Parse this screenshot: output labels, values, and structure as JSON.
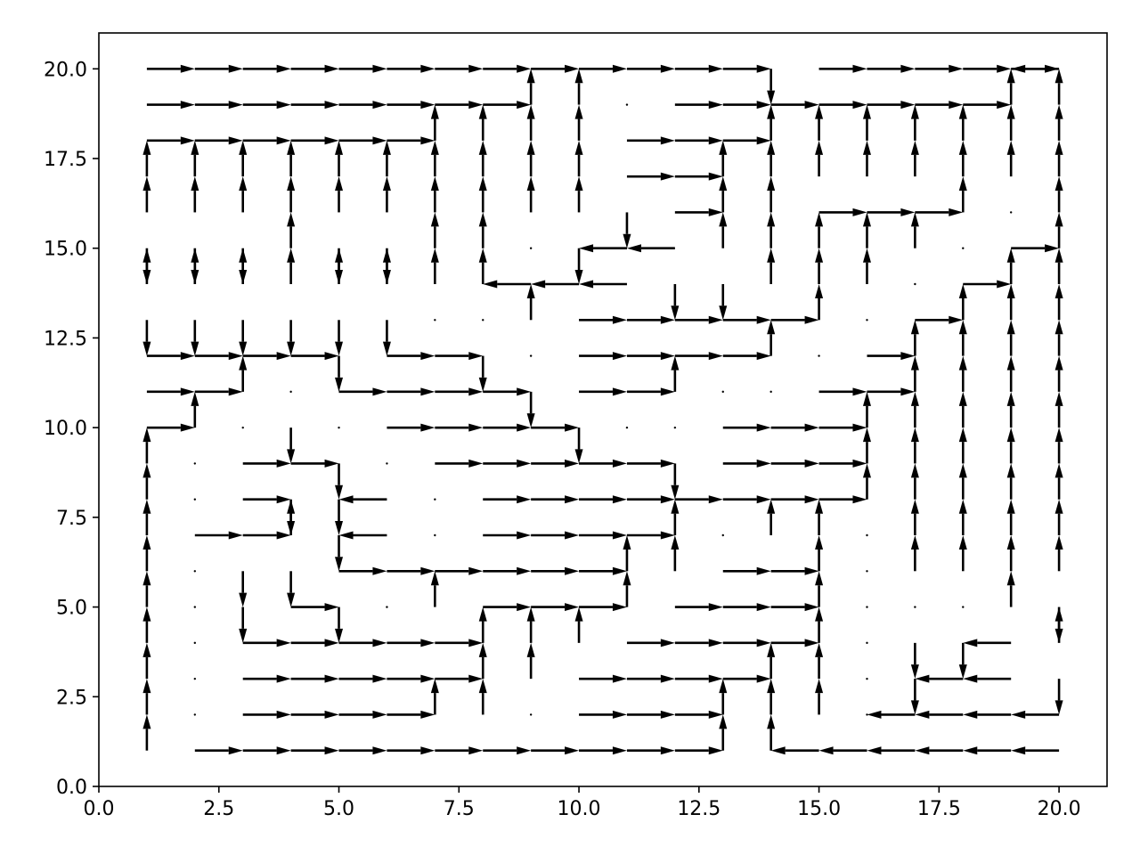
{
  "chart_data": {
    "type": "quiver",
    "title": "",
    "xlabel": "",
    "ylabel": "",
    "xlim": [
      0,
      21
    ],
    "ylim": [
      0,
      21
    ],
    "xticks": [
      0,
      2.5,
      5,
      7.5,
      10,
      12.5,
      15,
      17.5,
      20
    ],
    "yticks": [
      0,
      2.5,
      5,
      7.5,
      10,
      12.5,
      15,
      17.5,
      20
    ],
    "xtick_labels": [
      "0.0",
      "2.5",
      "5.0",
      "7.5",
      "10.0",
      "12.5",
      "15.0",
      "17.5",
      "20.0"
    ],
    "ytick_labels": [
      "0.0",
      "2.5",
      "5.0",
      "7.5",
      "10.0",
      "12.5",
      "15.0",
      "17.5",
      "20.0"
    ],
    "grid": false,
    "color": "#000000",
    "columns": [
      1,
      2,
      3,
      4,
      5,
      6,
      7,
      8,
      9,
      10,
      11,
      12,
      13,
      14,
      15,
      16,
      17,
      18,
      19,
      20
    ],
    "rows_top_to_bottom": [
      20,
      19,
      18,
      17,
      16,
      15,
      14,
      13,
      12,
      11,
      10,
      9,
      8,
      7,
      6,
      5,
      4,
      3,
      2,
      1
    ],
    "legend": "R = right, L = left, U = up, D = down, . = zero vector; each string lists x = 1..20; each vector starts at (x, y) and spans one grid unit",
    "grid_vectors": [
      "RRRRRRRRRRRRRDRRRRRL",
      "RRRRRRRRUU.RRRRRRRUU",
      "RRRRRRUUUURRRUUUUUUU",
      "UUUUUUUUUURRUUUUUUUU",
      "UUUUUUUUUUDRUURRRU.U",
      "DDDUDDUU.DLLUUUUU.RU",
      "UUUUUUUULLLDDUUU.RUU",
      "DDDDDD..URRRRRU.RUUU",
      "RRRRDRRD.RRRRU.RUUUU",
      "RRU.RRRRDRRU..RRUUUU",
      "RU.D.RRRRD..RRRUUUUU",
      "U.RRD.RRRRRDRRRUUUUU",
      "U.RDDL.RRRRRRRRUUUUU",
      "URRUDL.RRRRU.UU.UUUU",
      "U.DDRRRRRRUURRU.UUUU",
      "U.DRD.URRRURRRU...UD",
      "U.RRRRRUUURRRRU.DDLU",
      "U.RRRRRUURRRRUU.DLLD",
      "U.RRRRUU.RRRUUU.LLLL",
      "URRRRRRRRRRRUULLLLLL"
    ]
  }
}
